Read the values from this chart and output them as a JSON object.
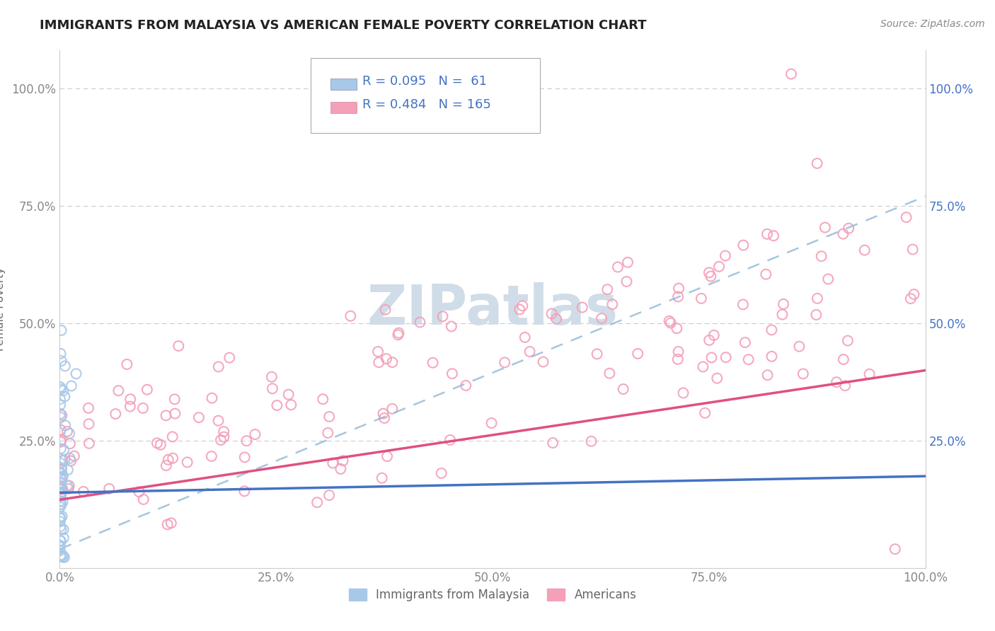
{
  "title": "IMMIGRANTS FROM MALAYSIA VS AMERICAN FEMALE POVERTY CORRELATION CHART",
  "source": "Source: ZipAtlas.com",
  "ylabel": "Female Poverty",
  "xlim": [
    0.0,
    1.0
  ],
  "ylim": [
    -0.02,
    1.08
  ],
  "xticklabels": [
    "0.0%",
    "25.0%",
    "50.0%",
    "75.0%",
    "100.0%"
  ],
  "yticklabels_left": [
    "",
    "25.0%",
    "50.0%",
    "75.0%",
    "100.0%"
  ],
  "yticklabels_right": [
    "25.0%",
    "50.0%",
    "75.0%",
    "100.0%"
  ],
  "legend1_label": "Immigrants from Malaysia",
  "legend2_label": "Americans",
  "r1": 0.095,
  "n1": 61,
  "r2": 0.484,
  "n2": 165,
  "color_blue": "#a8c8e8",
  "color_pink": "#f4a0b8",
  "line_blue": "#4472c4",
  "line_pink": "#e05080",
  "line_dashed": "#90b8d8",
  "watermark_color": "#d0dde8",
  "background_color": "#ffffff",
  "grid_color": "#cccccc",
  "title_color": "#222222",
  "axis_label_color": "#666666",
  "tick_color": "#888888",
  "right_tick_color": "#4472c4",
  "legend_r_color": "#4472c4",
  "blue_line_y0": 0.14,
  "blue_line_y1": 0.175,
  "pink_line_y0": 0.125,
  "pink_line_y1": 0.4,
  "dash_line_y0": 0.02,
  "dash_line_y1": 0.77
}
